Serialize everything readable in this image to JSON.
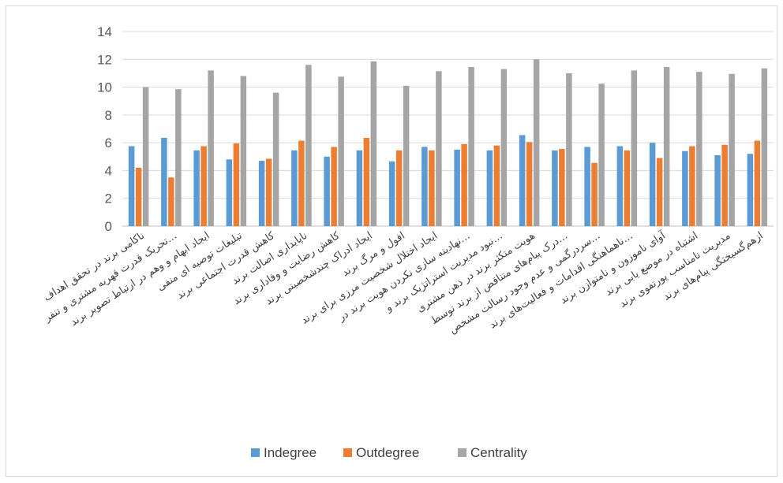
{
  "chart_data": {
    "type": "bar",
    "categories": [
      "ناکامی برند در تحقق اهداف",
      "تحریک قدرت قهریه مشتری و تنفر…",
      "ایجاد ابهام و وهم در ارتباط تصویر برند",
      "تبلیغات توصیه ای منفی",
      "کاهش قدرت اجتماعی برند",
      "ناپایداری اصالت برند",
      "کاهش رضایت و وفاداری برند",
      "ایجاد ادراک چندشخصیتی برند",
      "افول و مرگ برند",
      "ایجاد اختلال شخصیت مرزی برای برند",
      "نهادینه سازی نکردن هویت برند در…",
      "نبود مدیریت استراتژیک برند و…",
      "هویت متکثر برند در ذهن مشتری",
      "درک پیام‌های متناقض از برند توسط…",
      "سردرگمی و عدم وجود رسالت مشخص…",
      "ناهماهنگی اقدامات و فعالیت‌های برند…",
      "آوای ناموزون و نامتوازن برند",
      "اشتباه در موضع یابی برند",
      "مدیریت نامناسب پورتفوی برند",
      "ازهم‌گسیختگی پیام‌های برند"
    ],
    "series": [
      {
        "name": "Indegree",
        "color": "#5b9bd5",
        "values": [
          5.75,
          6.35,
          5.45,
          4.8,
          4.7,
          5.45,
          5.0,
          5.45,
          4.65,
          5.7,
          5.5,
          5.45,
          6.55,
          5.45,
          5.7,
          5.75,
          6.0,
          5.4,
          5.1,
          5.2
        ]
      },
      {
        "name": "Outdegree",
        "color": "#ed7d31",
        "values": [
          4.2,
          3.5,
          5.75,
          5.95,
          4.85,
          6.15,
          5.7,
          6.35,
          5.45,
          5.45,
          5.9,
          5.8,
          6.05,
          5.55,
          4.55,
          5.45,
          4.9,
          5.75,
          5.85,
          6.15
        ]
      },
      {
        "name": "Centrality",
        "color": "#a5a5a5",
        "values": [
          10.0,
          9.85,
          11.2,
          10.8,
          9.6,
          11.6,
          10.75,
          11.85,
          10.1,
          11.15,
          11.45,
          11.3,
          12.0,
          11.0,
          10.25,
          11.2,
          11.45,
          11.1,
          10.95,
          11.35
        ]
      }
    ],
    "yticks": [
      "0",
      "2",
      "4",
      "6",
      "8",
      "10",
      "12",
      "14"
    ],
    "ylim": [
      0,
      14
    ],
    "grid": true,
    "legend": "bottom"
  }
}
